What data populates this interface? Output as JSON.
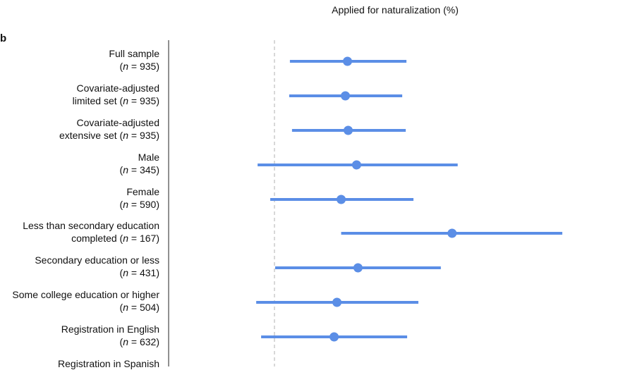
{
  "panel_label": "b",
  "chart_data": {
    "type": "forest",
    "xlabel": "Applied for naturalization (%)",
    "reference_line": 0,
    "xlim": [
      -4,
      40
    ],
    "rows": [
      {
        "label": "Full sample",
        "n_text": "935",
        "estimate": 10.4,
        "lower": 2.2,
        "upper": 18.8
      },
      {
        "label": "Covariate-adjusted limited set",
        "n_text": "935",
        "estimate": 10.1,
        "lower": 2.1,
        "upper": 18.2
      },
      {
        "label": "Covariate-adjusted extensive set",
        "n_text": "935",
        "estimate": 10.5,
        "lower": 2.5,
        "upper": 18.7
      },
      {
        "label": "Male",
        "n_text": "345",
        "estimate": 11.7,
        "lower": -2.4,
        "upper": 26.1
      },
      {
        "label": "Female",
        "n_text": "590",
        "estimate": 9.5,
        "lower": -0.6,
        "upper": 19.8
      },
      {
        "label": "Less than secondary education completed",
        "n_text": "167",
        "estimate": 25.3,
        "lower": 9.5,
        "upper": 41.0
      },
      {
        "label": "Secondary education or less",
        "n_text": "431",
        "estimate": 11.9,
        "lower": 0.1,
        "upper": 23.7
      },
      {
        "label": "Some college education or higher",
        "n_text": "504",
        "estimate": 8.9,
        "lower": -2.6,
        "upper": 20.5
      },
      {
        "label": "Registration in English",
        "n_text": "632",
        "estimate": 8.5,
        "lower": -1.9,
        "upper": 18.9
      },
      {
        "label": "Registration in Spanish",
        "n_text": "",
        "estimate": null,
        "lower": null,
        "upper": null
      }
    ]
  },
  "colors": {
    "series": "#5b8ee6",
    "reference": "#bdbdbd",
    "axis": "#222222"
  }
}
